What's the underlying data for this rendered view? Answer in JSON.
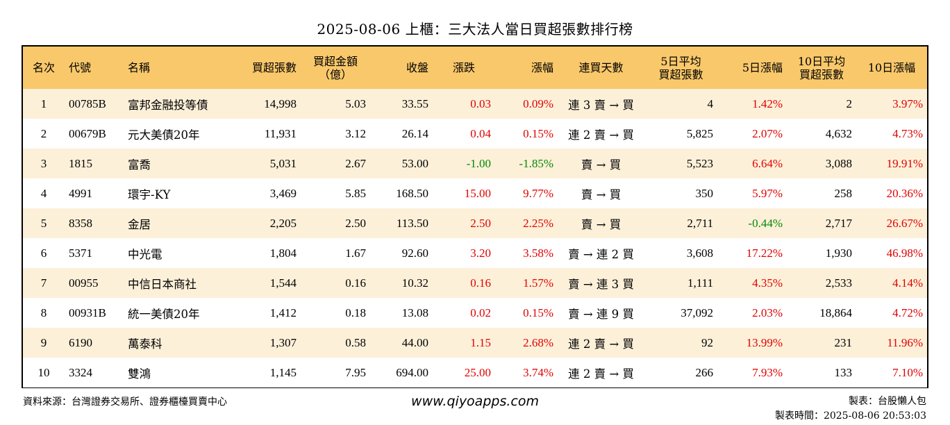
{
  "title": "2025-08-06 上櫃：三大法人當日買超張數排行榜",
  "headers": [
    "名次",
    "代號",
    "名稱",
    "買超張數",
    "買超金額\n（億）",
    "收盤",
    "漲跌",
    "漲幅",
    "連買天數",
    "5日平均\n買超張數",
    "5日漲幅",
    "10日平均\n買超張數",
    "10日漲幅"
  ],
  "colors": {
    "header_bg": "#f9c86b",
    "row_alt_bg": "#fdf0d9",
    "up": "#e00000",
    "down": "#008a00"
  },
  "rows": [
    {
      "rank": "1",
      "code": "00785B",
      "name": "富邦金融投等債",
      "volume": "14,998",
      "amount": "5.03",
      "close": "33.55",
      "change": "0.03",
      "pct": "0.09%",
      "streak": "連 3 賣 → 買",
      "avg5": "4",
      "pct5": "1.42%",
      "avg10": "2",
      "pct10": "3.97%"
    },
    {
      "rank": "2",
      "code": "00679B",
      "name": "元大美債20年",
      "volume": "11,931",
      "amount": "3.12",
      "close": "26.14",
      "change": "0.04",
      "pct": "0.15%",
      "streak": "連 2 賣 → 買",
      "avg5": "5,825",
      "pct5": "2.07%",
      "avg10": "4,632",
      "pct10": "4.73%"
    },
    {
      "rank": "3",
      "code": "1815",
      "name": "富喬",
      "volume": "5,031",
      "amount": "2.67",
      "close": "53.00",
      "change": "-1.00",
      "pct": "-1.85%",
      "streak": "賣 → 買",
      "avg5": "5,523",
      "pct5": "6.64%",
      "avg10": "3,088",
      "pct10": "19.91%"
    },
    {
      "rank": "4",
      "code": "4991",
      "name": "環宇-KY",
      "volume": "3,469",
      "amount": "5.85",
      "close": "168.50",
      "change": "15.00",
      "pct": "9.77%",
      "streak": "賣 → 買",
      "avg5": "350",
      "pct5": "5.97%",
      "avg10": "258",
      "pct10": "20.36%"
    },
    {
      "rank": "5",
      "code": "8358",
      "name": "金居",
      "volume": "2,205",
      "amount": "2.50",
      "close": "113.50",
      "change": "2.50",
      "pct": "2.25%",
      "streak": "賣 → 買",
      "avg5": "2,711",
      "pct5": "-0.44%",
      "avg10": "2,717",
      "pct10": "26.67%"
    },
    {
      "rank": "6",
      "code": "5371",
      "name": "中光電",
      "volume": "1,804",
      "amount": "1.67",
      "close": "92.60",
      "change": "3.20",
      "pct": "3.58%",
      "streak": "賣 → 連 2 買",
      "avg5": "3,608",
      "pct5": "17.22%",
      "avg10": "1,930",
      "pct10": "46.98%"
    },
    {
      "rank": "7",
      "code": "00955",
      "name": "中信日本商社",
      "volume": "1,544",
      "amount": "0.16",
      "close": "10.32",
      "change": "0.16",
      "pct": "1.57%",
      "streak": "賣 → 連 3 買",
      "avg5": "1,111",
      "pct5": "4.35%",
      "avg10": "2,533",
      "pct10": "4.14%"
    },
    {
      "rank": "8",
      "code": "00931B",
      "name": "統一美債20年",
      "volume": "1,412",
      "amount": "0.18",
      "close": "13.08",
      "change": "0.02",
      "pct": "0.15%",
      "streak": "賣 → 連 9 買",
      "avg5": "37,092",
      "pct5": "2.03%",
      "avg10": "18,864",
      "pct10": "4.72%"
    },
    {
      "rank": "9",
      "code": "6190",
      "name": "萬泰科",
      "volume": "1,307",
      "amount": "0.58",
      "close": "44.00",
      "change": "1.15",
      "pct": "2.68%",
      "streak": "連 2 賣 → 買",
      "avg5": "92",
      "pct5": "13.99%",
      "avg10": "231",
      "pct10": "11.96%"
    },
    {
      "rank": "10",
      "code": "3324",
      "name": "雙鴻",
      "volume": "1,145",
      "amount": "7.95",
      "close": "694.00",
      "change": "25.00",
      "pct": "3.74%",
      "streak": "連 2 賣 → 買",
      "avg5": "266",
      "pct5": "7.93%",
      "avg10": "133",
      "pct10": "7.10%"
    }
  ],
  "footer": {
    "source": "資料來源：台灣證券交易所、證券櫃檯買賣中心",
    "website": "www.qiyoapps.com",
    "maker": "製表：台股懶人包",
    "time": "製表時間：2025-08-06 20:53:03"
  }
}
